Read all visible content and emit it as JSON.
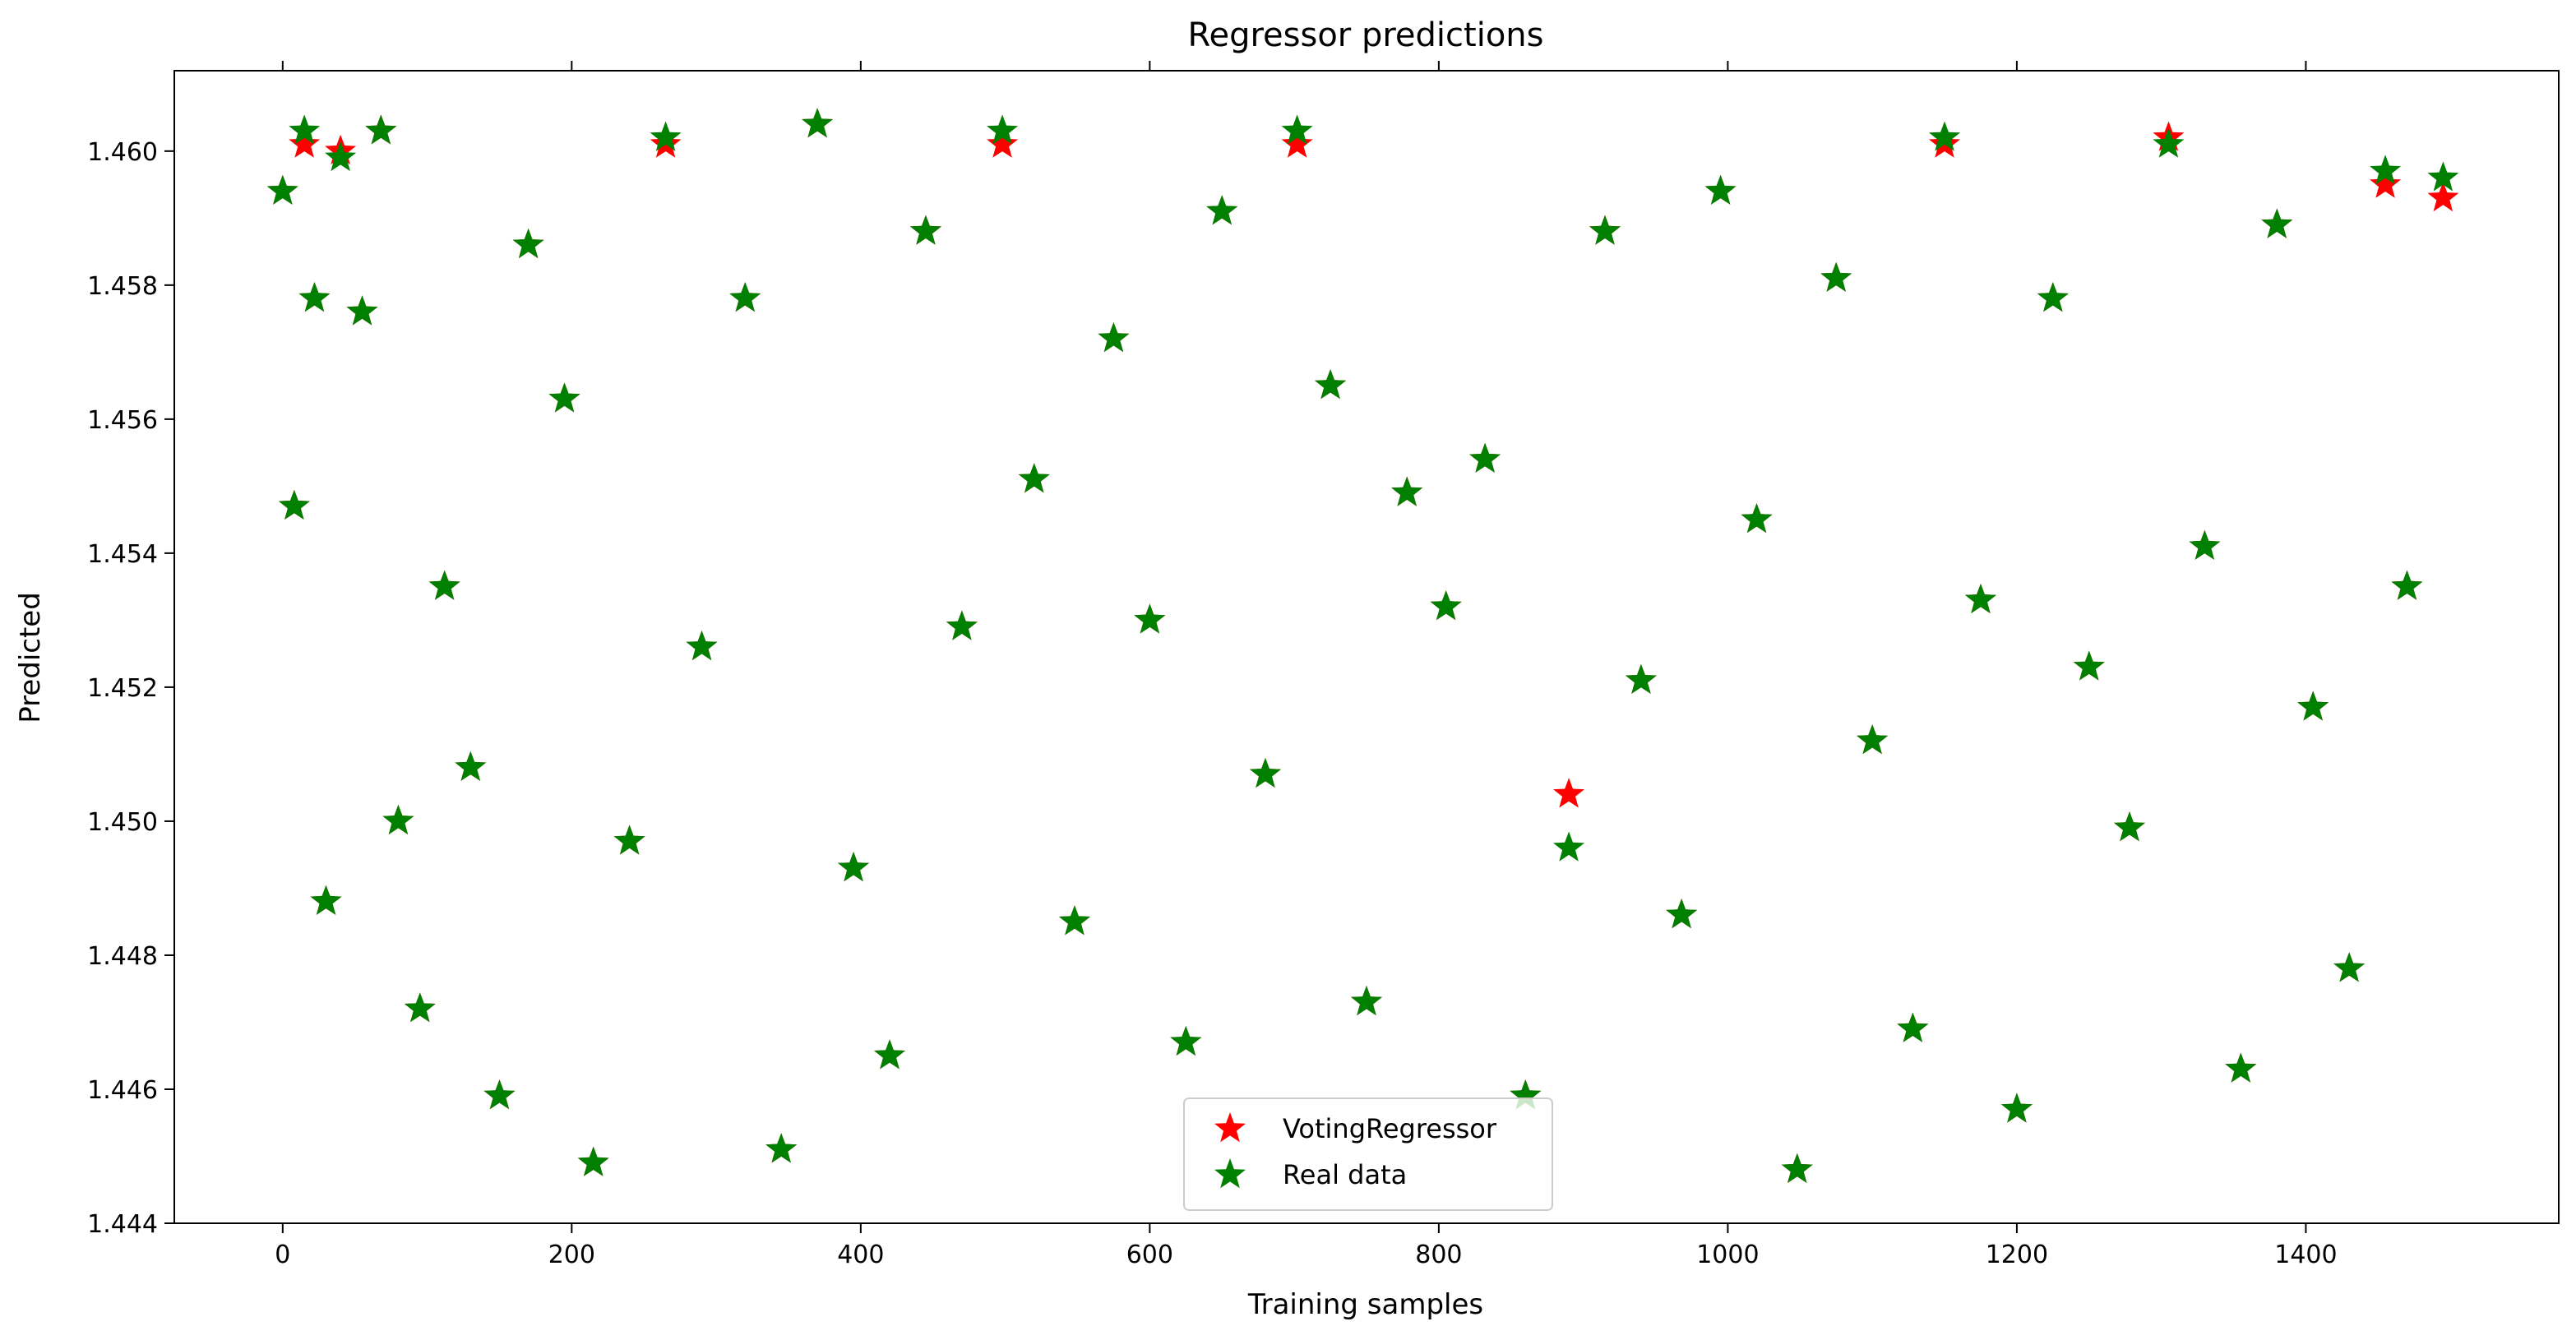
{
  "chart_data": {
    "type": "scatter",
    "title": "Regressor predictions",
    "xlabel": "Training samples",
    "ylabel": "Predicted",
    "xlim": [
      -75,
      1575
    ],
    "ylim": [
      1.444,
      1.4612
    ],
    "x_ticks": [
      0,
      200,
      400,
      600,
      800,
      1000,
      1200,
      1400
    ],
    "x_tick_labels": [
      "0",
      "200",
      "400",
      "600",
      "800",
      "1000",
      "1200",
      "1400"
    ],
    "y_ticks": [
      1.444,
      1.446,
      1.448,
      1.45,
      1.452,
      1.454,
      1.456,
      1.458,
      1.46
    ],
    "y_tick_labels": [
      "1.444",
      "1.446",
      "1.448",
      "1.450",
      "1.452",
      "1.454",
      "1.456",
      "1.458",
      "1.460"
    ],
    "grid": false,
    "legend_position": "lower-center",
    "marker": "star",
    "series": [
      {
        "name": "VotingRegressor",
        "color": "#ff0000",
        "points": [
          [
            0,
            1.4594
          ],
          [
            8,
            1.4547
          ],
          [
            15,
            1.4601
          ],
          [
            22,
            1.4578
          ],
          [
            30,
            1.4488
          ],
          [
            40,
            1.46
          ],
          [
            55,
            1.4576
          ],
          [
            68,
            1.4603
          ],
          [
            80,
            1.45
          ],
          [
            95,
            1.4472
          ],
          [
            112,
            1.4535
          ],
          [
            130,
            1.4508
          ],
          [
            150,
            1.4459
          ],
          [
            170,
            1.4586
          ],
          [
            195,
            1.4563
          ],
          [
            215,
            1.4449
          ],
          [
            240,
            1.4497
          ],
          [
            265,
            1.4601
          ],
          [
            290,
            1.4526
          ],
          [
            320,
            1.4578
          ],
          [
            345,
            1.4451
          ],
          [
            370,
            1.4604
          ],
          [
            395,
            1.4493
          ],
          [
            420,
            1.4465
          ],
          [
            445,
            1.4588
          ],
          [
            470,
            1.4529
          ],
          [
            498,
            1.4601
          ],
          [
            520,
            1.4551
          ],
          [
            548,
            1.4485
          ],
          [
            575,
            1.4572
          ],
          [
            600,
            1.453
          ],
          [
            625,
            1.4467
          ],
          [
            650,
            1.4591
          ],
          [
            680,
            1.4507
          ],
          [
            702,
            1.4601
          ],
          [
            725,
            1.4565
          ],
          [
            750,
            1.4473
          ],
          [
            778,
            1.4549
          ],
          [
            805,
            1.4532
          ],
          [
            832,
            1.4554
          ],
          [
            860,
            1.4459
          ],
          [
            890,
            1.4504
          ],
          [
            915,
            1.4588
          ],
          [
            940,
            1.4521
          ],
          [
            968,
            1.4486
          ],
          [
            995,
            1.4594
          ],
          [
            1020,
            1.4545
          ],
          [
            1048,
            1.4448
          ],
          [
            1075,
            1.4581
          ],
          [
            1100,
            1.4512
          ],
          [
            1128,
            1.4469
          ],
          [
            1150,
            1.4601
          ],
          [
            1175,
            1.4533
          ],
          [
            1200,
            1.4457
          ],
          [
            1225,
            1.4578
          ],
          [
            1250,
            1.4523
          ],
          [
            1278,
            1.4499
          ],
          [
            1305,
            1.4602
          ],
          [
            1330,
            1.4541
          ],
          [
            1355,
            1.4463
          ],
          [
            1380,
            1.4589
          ],
          [
            1405,
            1.4517
          ],
          [
            1430,
            1.4478
          ],
          [
            1455,
            1.4595
          ],
          [
            1470,
            1.4535
          ],
          [
            1495,
            1.4593
          ]
        ]
      },
      {
        "name": "Real data",
        "color": "#008000",
        "points": [
          [
            0,
            1.4594
          ],
          [
            8,
            1.4547
          ],
          [
            15,
            1.4603
          ],
          [
            22,
            1.4578
          ],
          [
            30,
            1.4488
          ],
          [
            40,
            1.4599
          ],
          [
            55,
            1.4576
          ],
          [
            68,
            1.4603
          ],
          [
            80,
            1.45
          ],
          [
            95,
            1.4472
          ],
          [
            112,
            1.4535
          ],
          [
            130,
            1.4508
          ],
          [
            150,
            1.4459
          ],
          [
            170,
            1.4586
          ],
          [
            195,
            1.4563
          ],
          [
            215,
            1.4449
          ],
          [
            240,
            1.4497
          ],
          [
            265,
            1.4602
          ],
          [
            290,
            1.4526
          ],
          [
            320,
            1.4578
          ],
          [
            345,
            1.4451
          ],
          [
            370,
            1.4604
          ],
          [
            395,
            1.4493
          ],
          [
            420,
            1.4465
          ],
          [
            445,
            1.4588
          ],
          [
            470,
            1.4529
          ],
          [
            498,
            1.4603
          ],
          [
            520,
            1.4551
          ],
          [
            548,
            1.4485
          ],
          [
            575,
            1.4572
          ],
          [
            600,
            1.453
          ],
          [
            625,
            1.4467
          ],
          [
            650,
            1.4591
          ],
          [
            680,
            1.4507
          ],
          [
            702,
            1.4603
          ],
          [
            725,
            1.4565
          ],
          [
            750,
            1.4473
          ],
          [
            778,
            1.4549
          ],
          [
            805,
            1.4532
          ],
          [
            832,
            1.4554
          ],
          [
            860,
            1.4459
          ],
          [
            890,
            1.4496
          ],
          [
            915,
            1.4588
          ],
          [
            940,
            1.4521
          ],
          [
            968,
            1.4486
          ],
          [
            995,
            1.4594
          ],
          [
            1020,
            1.4545
          ],
          [
            1048,
            1.4448
          ],
          [
            1075,
            1.4581
          ],
          [
            1100,
            1.4512
          ],
          [
            1128,
            1.4469
          ],
          [
            1150,
            1.4602
          ],
          [
            1175,
            1.4533
          ],
          [
            1200,
            1.4457
          ],
          [
            1225,
            1.4578
          ],
          [
            1250,
            1.4523
          ],
          [
            1278,
            1.4499
          ],
          [
            1305,
            1.4601
          ],
          [
            1330,
            1.4541
          ],
          [
            1355,
            1.4463
          ],
          [
            1380,
            1.4589
          ],
          [
            1405,
            1.4517
          ],
          [
            1430,
            1.4478
          ],
          [
            1455,
            1.4597
          ],
          [
            1470,
            1.4535
          ],
          [
            1495,
            1.4596
          ]
        ]
      }
    ]
  }
}
